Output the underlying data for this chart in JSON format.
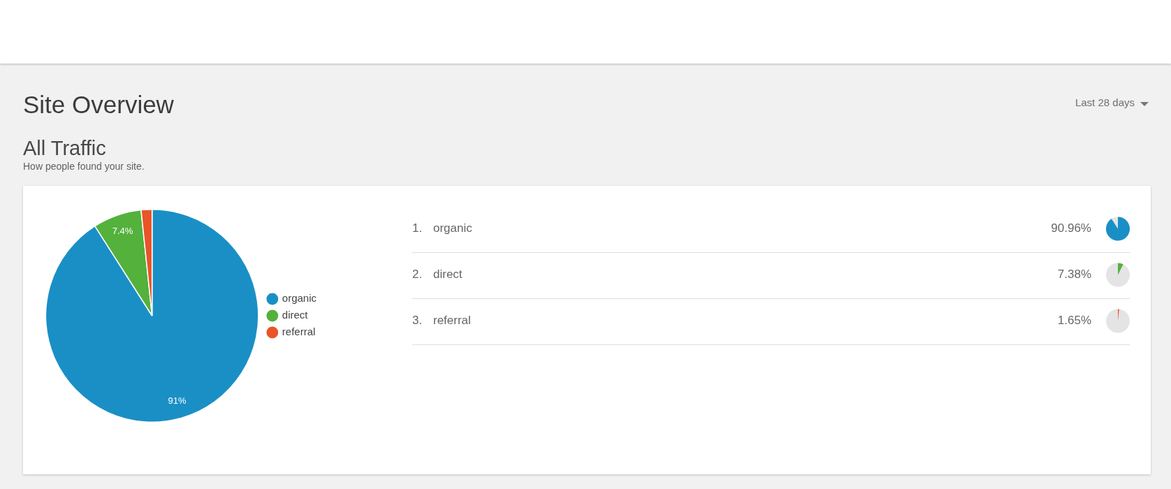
{
  "chart_data": [
    {
      "type": "pie",
      "title": "All Traffic",
      "subtitle": "How people found your site.",
      "annotations": [
        "Site Overview",
        "Last 28 days"
      ],
      "categories": [
        "organic",
        "direct",
        "referral"
      ],
      "values": [
        90.96,
        7.38,
        1.65
      ],
      "colors": [
        "#1a8fc6",
        "#53b13c",
        "#e95428"
      ],
      "value_labels": [
        "91%",
        "7.4%",
        null
      ],
      "legend": "right"
    },
    {
      "type": "other",
      "categories": [
        "organic",
        "direct",
        "referral"
      ],
      "values": [
        90.96,
        7.38,
        1.65
      ],
      "colors": [
        "#1a8fc6",
        "#53b13c",
        "#e95428"
      ],
      "value_labels": [
        "90.96%",
        "7.38%",
        "1.65%"
      ],
      "annotations": [
        "1.",
        "2.",
        "3."
      ]
    }
  ]
}
